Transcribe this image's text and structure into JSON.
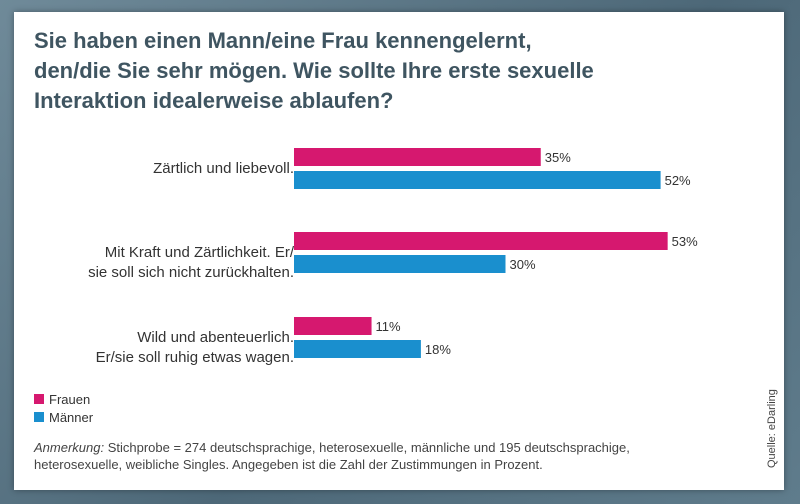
{
  "title_lines": [
    "Sie haben einen Mann/eine Frau kennengelernt,",
    "den/die Sie sehr mögen. Wie sollte Ihre erste sexuelle",
    "Interaktion idealerweise ablaufen?"
  ],
  "chart_data": {
    "type": "bar",
    "orientation": "horizontal",
    "categories": [
      [
        "Zärtlich und liebevoll."
      ],
      [
        "Mit Kraft und Zärtlichkeit. Er/",
        "sie soll sich nicht zurückhalten."
      ],
      [
        "Wild und abenteuerlich.",
        "Er/sie soll ruhig etwas wagen."
      ]
    ],
    "series": [
      {
        "name": "Frauen",
        "color": "#d6186f",
        "values": [
          35,
          53,
          11
        ],
        "labels": [
          "35%",
          "53%",
          "11%"
        ]
      },
      {
        "name": "Männer",
        "color": "#1a8fce",
        "values": [
          52,
          30,
          18
        ],
        "labels": [
          "52%",
          "30%",
          "18%"
        ]
      }
    ],
    "xlim": [
      0,
      60
    ],
    "grid": false,
    "legend": "bottom-left"
  },
  "note": {
    "label": "Anmerkung:",
    "text": " Stichprobe = 274 deutschsprachige, heterosexuelle, männliche und 195 deutschsprachige,",
    "line2": "heterosexuelle, weibliche Singles. Angegeben ist die Zahl der Zustimmungen in Prozent."
  },
  "source": "Quelle: eDarling"
}
